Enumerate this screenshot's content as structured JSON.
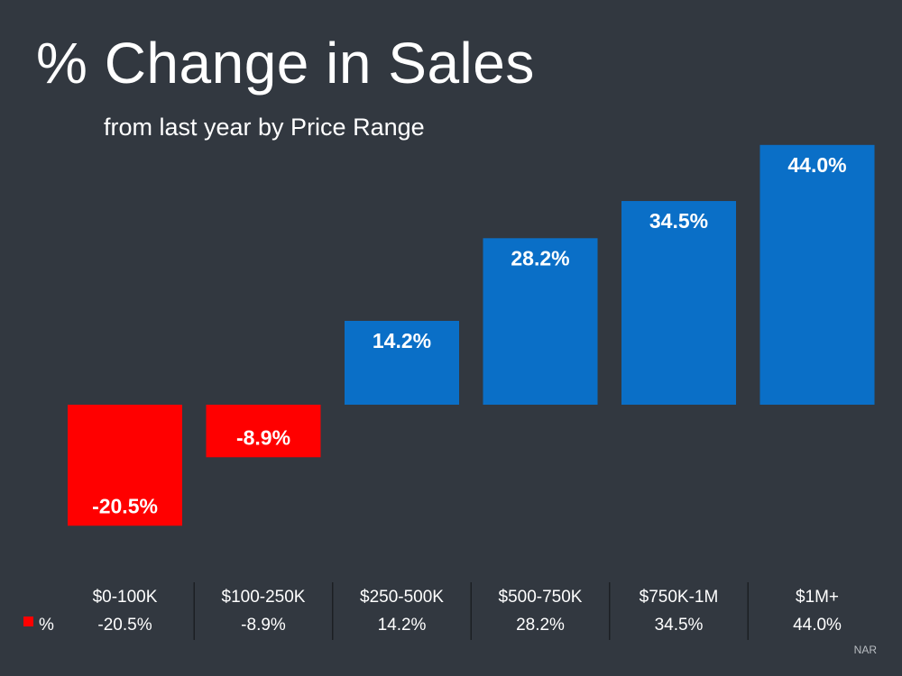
{
  "title": "% Change in Sales",
  "subtitle": "from last year by Price Range",
  "source": "NAR",
  "colors": {
    "background": "#323840",
    "positive": "#0a6fc7",
    "negative": "#ff0000",
    "divider": "#1c1f23"
  },
  "chart_data": {
    "type": "bar",
    "title": "% Change in Sales",
    "subtitle": "from last year by Price Range",
    "categories": [
      "$0-100K",
      "$100-250K",
      "$250-500K",
      "$500-750K",
      "$750K-1M",
      "$1M+"
    ],
    "series": [
      {
        "name": "%",
        "values": [
          -20.5,
          -8.9,
          14.2,
          28.2,
          34.5,
          44.0
        ],
        "labels": [
          "-20.5%",
          "-8.9%",
          "14.2%",
          "28.2%",
          "34.5%",
          "44.0%"
        ]
      }
    ],
    "data_table": {
      "row_label": "%",
      "values": [
        "-20.5%",
        "-8.9%",
        "14.2%",
        "28.2%",
        "34.5%",
        "44.0%"
      ]
    },
    "ylim": [
      -25,
      45
    ],
    "grid": false,
    "legend": "data-table-left"
  }
}
